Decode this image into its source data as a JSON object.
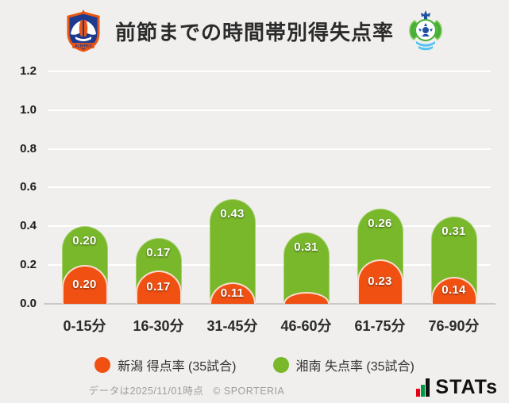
{
  "title": "前節までの時間帯別得失点率",
  "header": {
    "left_logo": "albirex-niigata-crest",
    "right_logo": "shonan-bellmare-crest"
  },
  "chart_data": {
    "type": "bar",
    "subtype": "stacked-rounded-top",
    "title": "前節までの時間帯別得失点率",
    "categories": [
      "0-15分",
      "16-30分",
      "31-45分",
      "46-60分",
      "61-75分",
      "76-90分"
    ],
    "series": [
      {
        "name": "新潟 得点率 (35試合)",
        "color": "#f05113",
        "values": [
          0.2,
          0.17,
          0.11,
          0.06,
          0.23,
          0.14
        ],
        "labels": [
          "0.20",
          "0.17",
          "0.11",
          "",
          "0.23",
          "0.14"
        ]
      },
      {
        "name": "湘南 失点率 (35試合)",
        "color": "#78b82a",
        "values": [
          0.2,
          0.17,
          0.43,
          0.31,
          0.26,
          0.31
        ],
        "labels": [
          "0.20",
          "0.17",
          "0.43",
          "0.31",
          "0.26",
          "0.31"
        ]
      }
    ],
    "ylim": [
      0,
      1.2
    ],
    "yticks": [
      "0.0",
      "0.2",
      "0.4",
      "0.6",
      "0.8",
      "1.0",
      "1.2"
    ],
    "grid": true,
    "grid_color": "#ffffff",
    "axis_color": "#c9c9c7",
    "background": "#f0efed",
    "legend_position": "bottom"
  },
  "footer": {
    "data_note": "データは2025/11/01時点",
    "copyright": "© SPORTERIA",
    "brand": "STATs"
  }
}
